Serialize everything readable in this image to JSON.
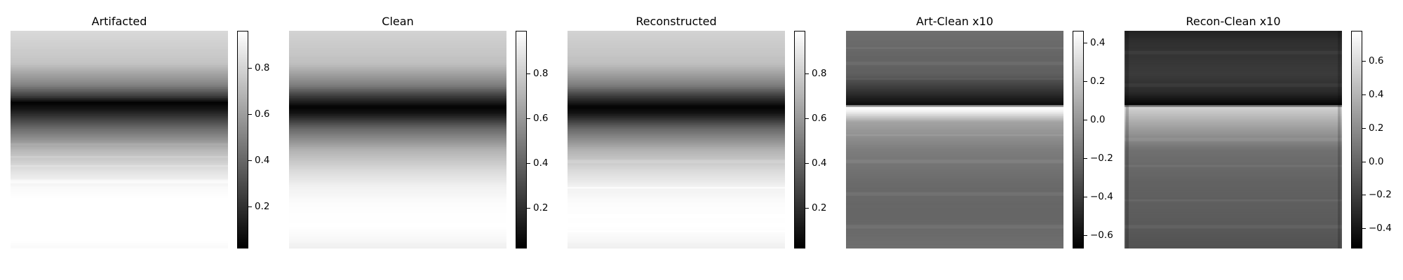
{
  "chart_data": [
    {
      "type": "heatmap",
      "title": "Artifacted",
      "colormap": "gray",
      "colorbar": {
        "range": [
          0.02,
          0.96
        ],
        "ticks": [
          0.2,
          0.4,
          0.6,
          0.8
        ]
      },
      "row_profile": {
        "rows": [
          0,
          0.15,
          0.25,
          0.3,
          0.33,
          0.36,
          0.45,
          0.55,
          0.65,
          0.72,
          0.8,
          0.9,
          0.96,
          1.0
        ],
        "values": [
          0.82,
          0.74,
          0.5,
          0.25,
          0.03,
          0.1,
          0.42,
          0.7,
          0.86,
          0.94,
          0.97,
          0.98,
          0.96,
          0.94
        ]
      },
      "stripes": [
        0.52,
        0.58,
        0.62,
        0.69,
        0.77,
        0.83,
        0.88,
        0.93
      ]
    },
    {
      "type": "heatmap",
      "title": "Clean",
      "colormap": "gray",
      "colorbar": {
        "range": [
          0.02,
          0.99
        ],
        "ticks": [
          0.2,
          0.4,
          0.6,
          0.8
        ]
      },
      "row_profile": {
        "rows": [
          0,
          0.15,
          0.25,
          0.3,
          0.35,
          0.38,
          0.45,
          0.55,
          0.65,
          0.72,
          0.8,
          0.9,
          0.96,
          1.0
        ],
        "values": [
          0.82,
          0.75,
          0.5,
          0.25,
          0.03,
          0.1,
          0.42,
          0.7,
          0.86,
          0.94,
          0.98,
          0.99,
          0.96,
          0.93
        ]
      },
      "stripes": []
    },
    {
      "type": "heatmap",
      "title": "Reconstructed",
      "colormap": "gray",
      "colorbar": {
        "range": [
          0.02,
          0.99
        ],
        "ticks": [
          0.2,
          0.4,
          0.6,
          0.8
        ]
      },
      "row_profile": {
        "rows": [
          0,
          0.15,
          0.25,
          0.3,
          0.35,
          0.38,
          0.45,
          0.55,
          0.65,
          0.72,
          0.8,
          0.9,
          0.96,
          1.0
        ],
        "values": [
          0.82,
          0.75,
          0.5,
          0.25,
          0.03,
          0.1,
          0.42,
          0.7,
          0.86,
          0.94,
          0.98,
          0.99,
          0.96,
          0.93
        ]
      },
      "stripes": [
        0.6,
        0.72,
        0.85,
        0.92
      ]
    },
    {
      "type": "heatmap",
      "title": "Art-Clean x10",
      "colormap": "gray",
      "colorbar": {
        "range": [
          -0.67,
          0.46
        ],
        "ticks": [
          -0.6,
          -0.4,
          -0.2,
          0.0,
          0.2,
          0.4
        ]
      },
      "row_profile": {
        "rows": [
          0,
          0.2,
          0.28,
          0.34,
          0.35,
          0.37,
          0.42,
          0.55,
          0.7,
          0.85,
          1.0
        ],
        "values": [
          -0.18,
          -0.25,
          -0.45,
          -0.62,
          0.45,
          0.4,
          0.05,
          -0.12,
          -0.2,
          -0.22,
          -0.18
        ]
      },
      "stripes": [
        0.08,
        0.15,
        0.22,
        0.48,
        0.6,
        0.75,
        0.9
      ]
    },
    {
      "type": "heatmap",
      "title": "Recon-Clean x10",
      "colormap": "gray",
      "colorbar": {
        "range": [
          -0.52,
          0.78
        ],
        "ticks": [
          -0.4,
          -0.2,
          0.0,
          0.2,
          0.4,
          0.6
        ]
      },
      "row_profile": {
        "rows": [
          0,
          0.05,
          0.2,
          0.28,
          0.34,
          0.35,
          0.42,
          0.55,
          0.7,
          0.85,
          1.0
        ],
        "values": [
          -0.35,
          -0.28,
          -0.22,
          -0.3,
          -0.5,
          0.55,
          0.35,
          0.05,
          -0.02,
          -0.05,
          -0.1
        ]
      },
      "stripes": [
        0.1,
        0.25,
        0.5,
        0.62,
        0.78,
        0.9
      ]
    }
  ]
}
